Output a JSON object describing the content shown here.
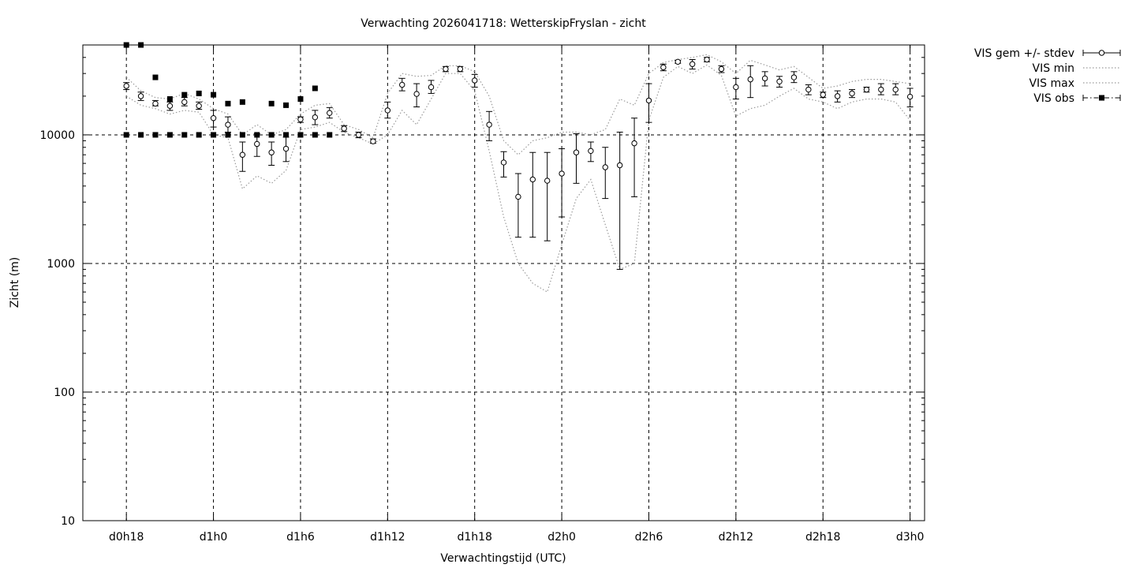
{
  "chart_data": {
    "type": "scatter",
    "title": "Verwachting 2026041718: WetterskipFryslan - zicht",
    "xlabel": "Verwachtingstijd (UTC)",
    "ylabel": "Zicht (m)",
    "y_scale": "log",
    "ylim": [
      10,
      50000
    ],
    "xlim_hours": [
      -3,
      55
    ],
    "grid": true,
    "legend_position": "outside-top-right",
    "x_ticks": [
      {
        "hour": 0,
        "label": "d0h18"
      },
      {
        "hour": 6,
        "label": "d1h0"
      },
      {
        "hour": 12,
        "label": "d1h6"
      },
      {
        "hour": 18,
        "label": "d1h12"
      },
      {
        "hour": 24,
        "label": "d1h18"
      },
      {
        "hour": 30,
        "label": "d2h0"
      },
      {
        "hour": 36,
        "label": "d2h6"
      },
      {
        "hour": 42,
        "label": "d2h12"
      },
      {
        "hour": 48,
        "label": "d2h18"
      },
      {
        "hour": 54,
        "label": "d3h0"
      }
    ],
    "y_ticks": [
      {
        "value": 10,
        "label": "10"
      },
      {
        "value": 100,
        "label": "100"
      },
      {
        "value": 1000,
        "label": "1000"
      },
      {
        "value": 10000,
        "label": "10000"
      }
    ],
    "series": [
      {
        "name": "VIS gem +/- stdev",
        "style": "errorbars",
        "x": [
          0,
          1,
          2,
          3,
          4,
          5,
          6,
          7,
          8,
          9,
          10,
          11,
          12,
          13,
          14,
          15,
          16,
          17,
          18,
          19,
          20,
          21,
          22,
          23,
          24,
          25,
          26,
          27,
          28,
          29,
          30,
          31,
          32,
          33,
          34,
          35,
          36,
          37,
          38,
          39,
          40,
          41,
          42,
          43,
          44,
          45,
          46,
          47,
          48,
          49,
          50,
          51,
          52,
          53,
          54
        ],
        "mean": [
          24000,
          20000,
          17500,
          16800,
          18000,
          16800,
          13500,
          12000,
          7000,
          8500,
          7300,
          7800,
          13200,
          13700,
          14800,
          11200,
          10000,
          8900,
          15500,
          24500,
          20800,
          23500,
          32500,
          32500,
          26500,
          12000,
          6100,
          3300,
          4500,
          4400,
          5000,
          7300,
          7500,
          5600,
          5800,
          8600,
          18500,
          33500,
          37000,
          35500,
          38500,
          32500,
          23500,
          27000,
          27500,
          26000,
          28000,
          22500,
          20500,
          20000,
          21000,
          22500,
          22500,
          22500,
          19800
        ],
        "low": [
          22500,
          18500,
          16800,
          15500,
          16800,
          15800,
          11500,
          10500,
          5200,
          6800,
          5800,
          6200,
          12500,
          12000,
          13500,
          10600,
          9500,
          8600,
          13500,
          22000,
          16500,
          21000,
          31000,
          31000,
          23500,
          9000,
          4700,
          1600,
          1600,
          1500,
          2300,
          4200,
          6200,
          3200,
          900,
          3300,
          12500,
          31500,
          36000,
          32500,
          37000,
          30500,
          19000,
          19500,
          24000,
          23500,
          25500,
          20500,
          19500,
          18000,
          19500,
          21500,
          20500,
          20500,
          16500
        ],
        "high": [
          25500,
          21500,
          18500,
          18000,
          19500,
          18000,
          15500,
          13800,
          8800,
          10200,
          8800,
          9600,
          13800,
          15500,
          16300,
          11800,
          10500,
          9300,
          18000,
          27500,
          25000,
          26500,
          34000,
          34000,
          29500,
          15200,
          7400,
          5000,
          7300,
          7300,
          7800,
          10200,
          8800,
          8000,
          10500,
          13500,
          25000,
          35500,
          38000,
          38500,
          40000,
          34500,
          27500,
          34500,
          31000,
          28500,
          31000,
          24500,
          21500,
          22000,
          22500,
          23500,
          25000,
          25000,
          23000
        ]
      },
      {
        "name": "VIS min",
        "style": "dotted-line",
        "x": [
          0,
          1,
          2,
          3,
          4,
          5,
          6,
          7,
          8,
          9,
          10,
          11,
          12,
          13,
          14,
          15,
          16,
          17,
          18,
          19,
          20,
          21,
          22,
          23,
          24,
          25,
          26,
          27,
          28,
          29,
          30,
          31,
          32,
          33,
          34,
          35,
          36,
          37,
          38,
          39,
          40,
          41,
          42,
          43,
          44,
          45,
          46,
          47,
          48,
          49,
          50,
          51,
          52,
          53,
          54
        ],
        "values": [
          20000,
          17000,
          16000,
          14500,
          15500,
          15000,
          10000,
          9500,
          3800,
          4800,
          4200,
          5300,
          11000,
          11500,
          12500,
          10500,
          9500,
          8500,
          10000,
          15500,
          12000,
          19000,
          30000,
          30000,
          22000,
          7500,
          2300,
          1000,
          700,
          600,
          1400,
          3200,
          4500,
          2000,
          900,
          1000,
          13000,
          28000,
          34000,
          30000,
          35000,
          29000,
          14000,
          16000,
          17000,
          20000,
          23000,
          19000,
          18000,
          16000,
          18000,
          19000,
          19000,
          18000,
          13000
        ]
      },
      {
        "name": "VIS max",
        "style": "dotted-line",
        "x": [
          0,
          1,
          2,
          3,
          4,
          5,
          6,
          7,
          8,
          9,
          10,
          11,
          12,
          13,
          14,
          15,
          16,
          17,
          18,
          19,
          20,
          21,
          22,
          23,
          24,
          25,
          26,
          27,
          28,
          29,
          30,
          31,
          32,
          33,
          34,
          35,
          36,
          37,
          38,
          39,
          40,
          41,
          42,
          43,
          44,
          45,
          46,
          47,
          48,
          49,
          50,
          51,
          52,
          53,
          54
        ],
        "values": [
          28000,
          22000,
          19500,
          19000,
          21000,
          19000,
          16000,
          14500,
          10000,
          12000,
          10000,
          11000,
          14500,
          17000,
          17500,
          12000,
          11000,
          9500,
          21000,
          30000,
          28500,
          29000,
          34500,
          34500,
          31000,
          20000,
          9000,
          7000,
          9000,
          9500,
          10500,
          10500,
          10000,
          11000,
          19000,
          17000,
          30000,
          36500,
          38500,
          40000,
          42000,
          37000,
          30000,
          38000,
          35000,
          32000,
          34000,
          28000,
          23000,
          24000,
          26000,
          27000,
          27000,
          26000,
          25000
        ]
      },
      {
        "name": "VIS obs",
        "style": "filled-squares",
        "points": [
          {
            "x": 0,
            "y": 50000
          },
          {
            "x": 1,
            "y": 50000
          },
          {
            "x": 2,
            "y": 28000
          },
          {
            "x": 3,
            "y": 19000
          },
          {
            "x": 4,
            "y": 20500
          },
          {
            "x": 5,
            "y": 21000
          },
          {
            "x": 6,
            "y": 20500
          },
          {
            "x": 7,
            "y": 17500
          },
          {
            "x": 8,
            "y": 18000
          },
          {
            "x": 10,
            "y": 17500
          },
          {
            "x": 11,
            "y": 17000
          },
          {
            "x": 12,
            "y": 19000
          },
          {
            "x": 13,
            "y": 23000
          },
          {
            "x": 0,
            "y": 10000
          },
          {
            "x": 1,
            "y": 10000
          },
          {
            "x": 2,
            "y": 10000
          },
          {
            "x": 3,
            "y": 10000
          },
          {
            "x": 4,
            "y": 10000
          },
          {
            "x": 5,
            "y": 10000
          },
          {
            "x": 6,
            "y": 10000
          },
          {
            "x": 7,
            "y": 10000
          },
          {
            "x": 8,
            "y": 10000
          },
          {
            "x": 9,
            "y": 10000
          },
          {
            "x": 10,
            "y": 10000
          },
          {
            "x": 11,
            "y": 10000
          },
          {
            "x": 12,
            "y": 10000
          },
          {
            "x": 13,
            "y": 10000
          },
          {
            "x": 14,
            "y": 10000
          }
        ]
      }
    ]
  }
}
